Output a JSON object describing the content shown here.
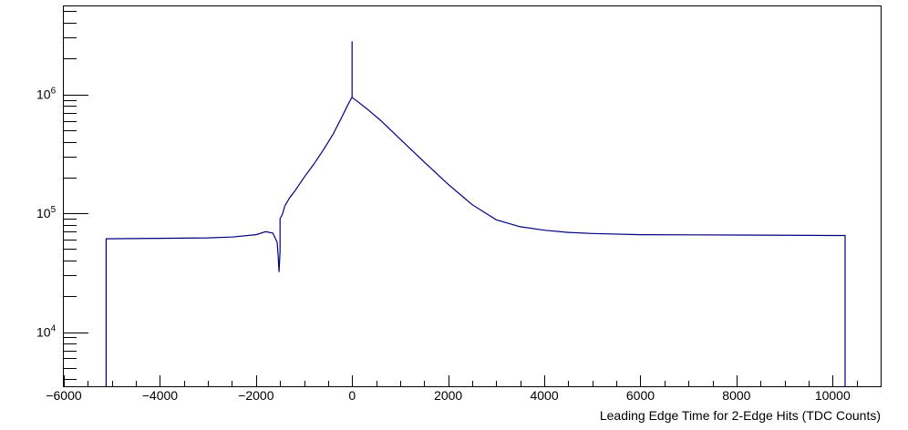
{
  "chart_data": {
    "type": "line",
    "title": "",
    "xlabel": "Leading Edge Time for 2-Edge Hits (TDC Counts)",
    "ylabel": "",
    "xlim": [
      -6000,
      11000
    ],
    "ylim": [
      3500,
      5500000
    ],
    "yscale": "log",
    "grid": false,
    "legend": "none",
    "line_color": "#00007f",
    "x_ticks": [
      {
        "value": -6000,
        "label": "−6000"
      },
      {
        "value": -4000,
        "label": "−4000"
      },
      {
        "value": -2000,
        "label": "−2000"
      },
      {
        "value": 0,
        "label": "0"
      },
      {
        "value": 2000,
        "label": "2000"
      },
      {
        "value": 4000,
        "label": "4000"
      },
      {
        "value": 6000,
        "label": "6000"
      },
      {
        "value": 8000,
        "label": "8000"
      },
      {
        "value": 10000,
        "label": "10000"
      }
    ],
    "y_ticks": [
      {
        "value": 10000,
        "base": "10",
        "exp": "4"
      },
      {
        "value": 100000,
        "base": "10",
        "exp": "5"
      },
      {
        "value": 1000000,
        "base": "10",
        "exp": "6"
      }
    ],
    "series": [
      {
        "x": [
          -5120,
          -5120,
          -4000,
          -3000,
          -2500,
          -2000,
          -1800,
          -1650,
          -1560,
          -1540,
          -1520,
          -1500,
          -1500,
          -1450,
          -1400,
          -1300,
          -1200,
          -1000,
          -800,
          -600,
          -400,
          -200,
          -100,
          0,
          0,
          0,
          0,
          100,
          300,
          600,
          1000,
          1500,
          2000,
          2500,
          3000,
          3500,
          4000,
          4500,
          5000,
          6000,
          8000,
          10000,
          10260,
          10260
        ],
        "y": [
          0,
          61000,
          61500,
          62000,
          63000,
          66000,
          70000,
          68000,
          57000,
          44000,
          32000,
          48000,
          90000,
          98000,
          115000,
          135000,
          152000,
          200000,
          258000,
          340000,
          460000,
          660000,
          800000,
          950000,
          2800000,
          950000,
          940000,
          880000,
          760000,
          600000,
          420000,
          270000,
          175000,
          118000,
          88000,
          77000,
          72000,
          69000,
          67500,
          66000,
          65500,
          65000,
          65000,
          0
        ]
      }
    ]
  }
}
